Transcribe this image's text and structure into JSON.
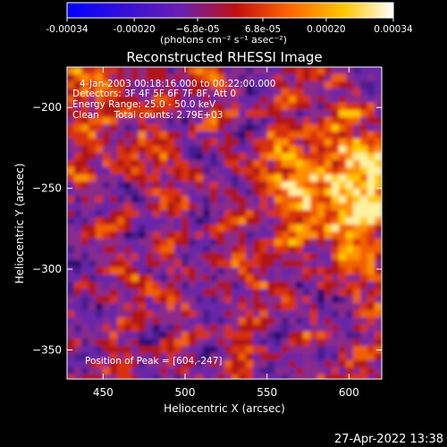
{
  "chart_data": {
    "type": "heatmap",
    "title": "Reconstructed RHESSI Image",
    "xlabel": "Heliocentric X (arcsec)",
    "ylabel": "Heliocentric Y (arcsec)",
    "xlim": [
      428,
      620
    ],
    "ylim": [
      -368,
      -175
    ],
    "x_ticks": [
      450,
      500,
      550,
      600
    ],
    "y_ticks": [
      -350,
      -300,
      -250,
      -200
    ],
    "colorbar": {
      "ticks": [
        "-0.00034",
        "-0.00020",
        "−6.8e-05",
        "6.8e-05",
        "0.00020",
        "0.00034"
      ],
      "tick_values": [
        -0.00034,
        -0.0002,
        -6.8e-05,
        6.8e-05,
        0.0002,
        0.00034
      ],
      "range": [
        -0.00034,
        0.00034
      ],
      "unit_label": "(photons cm⁻² s⁻¹ asec⁻²)",
      "colormap": [
        "#0000ff",
        "#6a1fb0",
        "#c01010",
        "#ff6400",
        "#ffc800",
        "#ffffff"
      ]
    },
    "annotations": [
      "4-Jan-2003 00:18:16.000 to 00:22:00.000",
      "Detectors: 3F 4F 5F 6F 7F 8F, Att 0",
      "Energy Range: 25.0 - 50.0 keV",
      "Clean     Total counts: 2.79E+03"
    ],
    "peak_label": "Position of Peak = [604,-247]",
    "peak": [
      604,
      -247
    ],
    "grid": false
  },
  "footer": {
    "timestamp": "27-Apr-2022 13:38"
  }
}
